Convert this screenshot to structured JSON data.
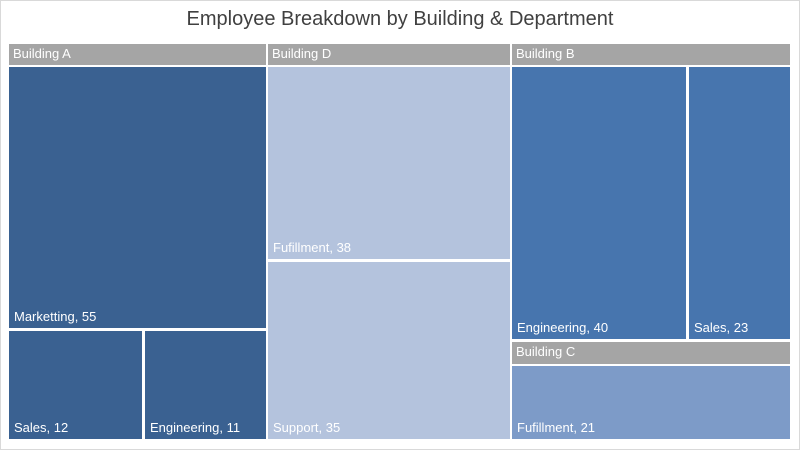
{
  "chart_data": {
    "type": "treemap",
    "title": "Employee Breakdown by Building & Department",
    "header_color": "#a5a5a5",
    "groups": [
      {
        "name": "Building A",
        "color": "#3a6191",
        "items": [
          {
            "name": "Marketting",
            "value": 55
          },
          {
            "name": "Sales",
            "value": 12
          },
          {
            "name": "Engineering",
            "value": 11
          }
        ]
      },
      {
        "name": "Building D",
        "color": "#b4c3dd",
        "items": [
          {
            "name": "Fufillment",
            "value": 38
          },
          {
            "name": "Support",
            "value": 35
          }
        ]
      },
      {
        "name": "Building B",
        "color": "#4775ae",
        "items": [
          {
            "name": "Engineering",
            "value": 40
          },
          {
            "name": "Sales",
            "value": 23
          }
        ]
      },
      {
        "name": "Building C",
        "color": "#7d9bc8",
        "items": [
          {
            "name": "Fufillment",
            "value": 21
          }
        ]
      }
    ]
  }
}
